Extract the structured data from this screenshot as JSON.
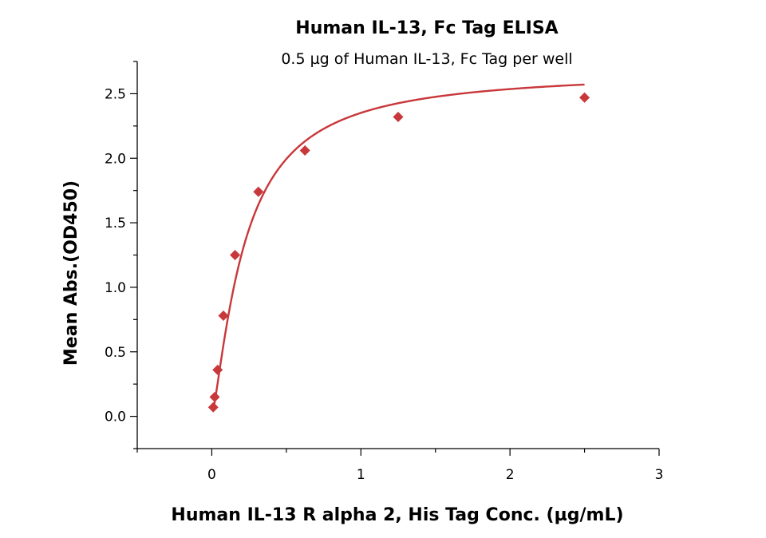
{
  "chart_data": {
    "type": "scatter",
    "title": "Human IL-13, Fc Tag ELISA",
    "subtitle": "0.5 µg of Human IL-13, Fc Tag per well",
    "xlabel": "Human IL-13 R alpha 2, His Tag Conc. (µg/mL)",
    "ylabel": "Mean Abs.(OD450)",
    "xlim": [
      -0.5,
      3
    ],
    "ylim": [
      -0.25,
      2.75
    ],
    "xticks": [
      0,
      1,
      2,
      3
    ],
    "yticks": [
      0.0,
      0.5,
      1.0,
      1.5,
      2.0,
      2.5
    ],
    "xtick_labels": [
      "0",
      "1",
      "2",
      "3"
    ],
    "ytick_labels": [
      "0.0",
      "0.5",
      "1.0",
      "1.5",
      "2.0",
      "2.5"
    ],
    "grid": false,
    "color": "#c8373a",
    "marker": "diamond",
    "fit": "4PL",
    "series": [
      {
        "x": [
          0.0098,
          0.0195,
          0.039,
          0.078,
          0.156,
          0.3125,
          0.625,
          1.25,
          2.5
        ],
        "y": [
          0.07,
          0.15,
          0.36,
          0.78,
          1.25,
          1.74,
          2.06,
          2.32,
          2.47
        ]
      }
    ]
  }
}
